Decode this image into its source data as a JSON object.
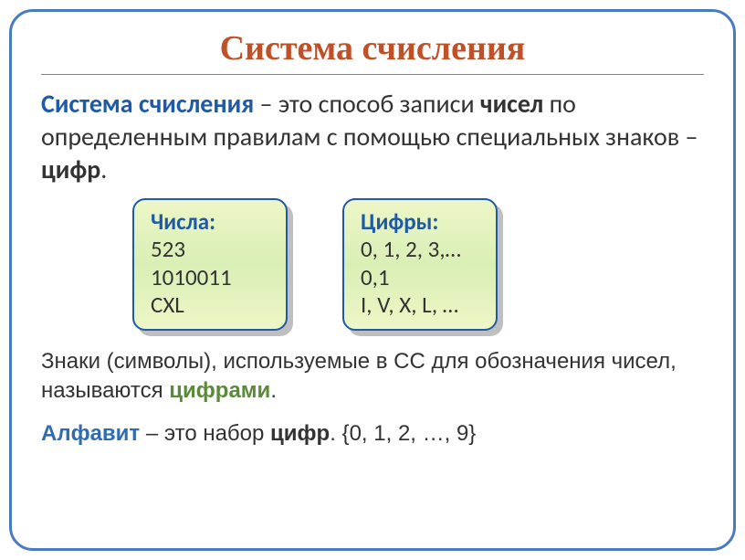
{
  "slide": {
    "title": "Система счисления",
    "title_color": "#c05028",
    "border_color": "#4a7bc0",
    "definition": {
      "term": "Система счисления",
      "term_color": "#1f5aa6",
      "part1": " – это способ записи ",
      "emph1": "чисел",
      "part2": " по определенным правилам с помощью специальных знаков – ",
      "emph2": "цифр",
      "part3": "."
    },
    "boxes": [
      {
        "title": "Числа:",
        "lines": [
          "523",
          "1010011",
          "CXL"
        ]
      },
      {
        "title": "Цифры:",
        "lines": [
          "0, 1, 2, 3,…",
          "0,1",
          "I, V, X, L, …"
        ]
      }
    ],
    "box_bg_top": "#eef6c7",
    "box_bg_mid": "#d9efb5",
    "box_border": "#1f5aa6",
    "box_shadow_color": "#bfbfbf",
    "paragraph": {
      "t1": "Знаки (символы), используемые в СС для обозначения чисел, называются ",
      "emph": "цифрами",
      "t2": "."
    },
    "alphabet_line": {
      "term": "Алфавит",
      "t1": " – это набор ",
      "emph": "цифр",
      "t2": ".  {0, 1, 2, …, 9}"
    }
  }
}
